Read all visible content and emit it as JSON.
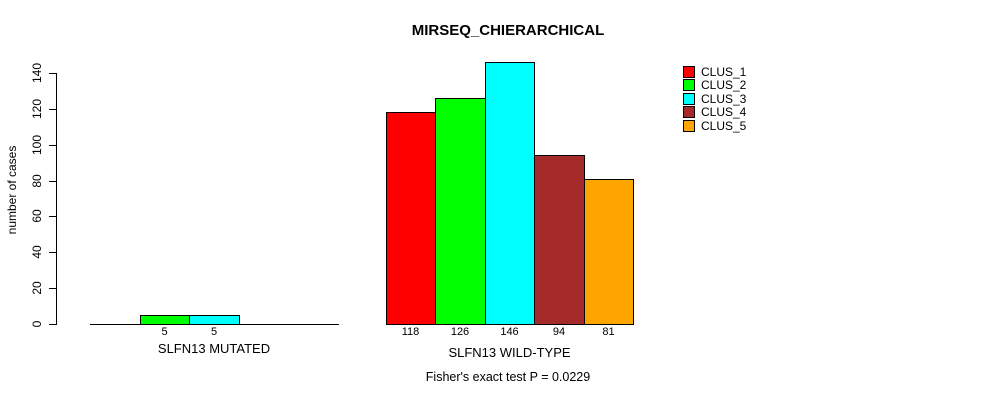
{
  "chart_data": {
    "type": "bar",
    "title": "MIRSEQ_CHIERARCHICAL",
    "ylabel": "number of cases",
    "xlabel": "",
    "ylim": [
      0,
      140
    ],
    "yticks": [
      0,
      20,
      40,
      60,
      80,
      100,
      120,
      140
    ],
    "grid": false,
    "legend_position": "top-right",
    "legend": [
      {
        "label": "CLUS_1",
        "color": "#FF0000"
      },
      {
        "label": "CLUS_2",
        "color": "#00FF00"
      },
      {
        "label": "CLUS_3",
        "color": "#00FFFF"
      },
      {
        "label": "CLUS_4",
        "color": "#A52A2A"
      },
      {
        "label": "CLUS_5",
        "color": "#FFA500"
      }
    ],
    "groups": [
      {
        "label": "SLFN13 MUTATED",
        "bars": [
          {
            "cluster": "CLUS_2",
            "value": 5
          },
          {
            "cluster": "CLUS_3",
            "value": 5
          }
        ]
      },
      {
        "label": "SLFN13 WILD-TYPE",
        "bars": [
          {
            "cluster": "CLUS_1",
            "value": 118
          },
          {
            "cluster": "CLUS_2",
            "value": 126
          },
          {
            "cluster": "CLUS_3",
            "value": 146
          },
          {
            "cluster": "CLUS_4",
            "value": 94
          },
          {
            "cluster": "CLUS_5",
            "value": 81
          }
        ]
      }
    ],
    "annotation": "Fisher's exact test P = 0.0229"
  }
}
